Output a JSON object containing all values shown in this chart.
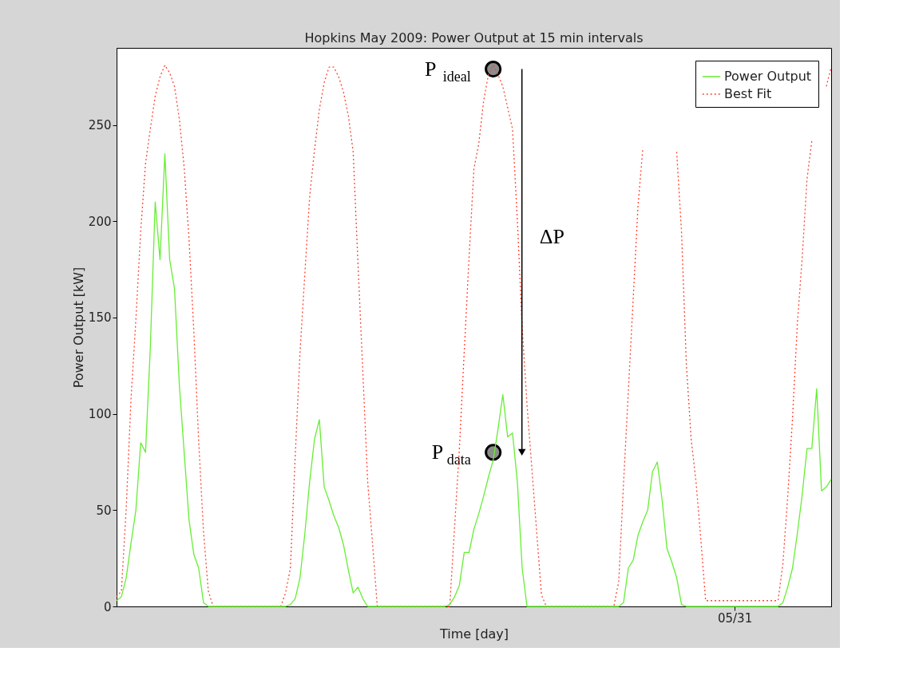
{
  "chart_data": {
    "type": "line",
    "title": "Hopkins May 2009: Power Output at 15 min intervals",
    "xlabel": "Time [day]",
    "ylabel": "Power Output [kW]",
    "categories": [
      null,
      null,
      null,
      null,
      null,
      null,
      null,
      null,
      null,
      null,
      null,
      null,
      null,
      null,
      null,
      null,
      null,
      null,
      null,
      null,
      null,
      null,
      null,
      null,
      null,
      null,
      null,
      null,
      null,
      null,
      null,
      null,
      null,
      null,
      null,
      null,
      null,
      null,
      null,
      null,
      null,
      null,
      null,
      null,
      null,
      null,
      null,
      null,
      null,
      null,
      null,
      null,
      null,
      null,
      null,
      null,
      null,
      null,
      null,
      null,
      null,
      null,
      null,
      null,
      null,
      null,
      null,
      null,
      null,
      null,
      null,
      null,
      null,
      null,
      null,
      null,
      null,
      null,
      null,
      null,
      null,
      null,
      null,
      null,
      null,
      null,
      null,
      null,
      null,
      null,
      null,
      null,
      null,
      null,
      null,
      null,
      null,
      null,
      null,
      null,
      null,
      null,
      null,
      null,
      null,
      null,
      null,
      null,
      null,
      null,
      null,
      null,
      null,
      null,
      null,
      null,
      null,
      null,
      null,
      null,
      null,
      null,
      null,
      null,
      null,
      null,
      null,
      null,
      "05/31",
      null,
      null,
      null,
      null,
      null,
      null,
      null,
      null,
      null,
      null,
      null,
      null,
      null,
      null,
      null,
      null,
      null,
      null,
      null,
      null
    ],
    "ylim": [
      0,
      290
    ],
    "yticks": [
      0,
      50,
      100,
      150,
      200,
      250
    ],
    "grid": false,
    "legend": "top right",
    "series": [
      {
        "name": "Power Output",
        "line_style": "solid",
        "color": "#66ee33",
        "values": [
          3,
          5,
          15,
          33,
          50,
          85,
          80,
          135,
          210,
          180,
          235,
          180,
          165,
          115,
          80,
          45,
          27,
          20,
          2,
          0,
          0,
          0,
          0,
          0,
          0,
          0,
          0,
          0,
          0,
          0,
          0,
          0,
          0,
          0,
          0,
          0,
          1,
          4,
          15,
          38,
          65,
          87,
          97,
          62,
          55,
          47,
          41,
          32,
          19,
          7,
          10,
          4,
          0,
          0,
          0,
          0,
          0,
          0,
          0,
          0,
          0,
          0,
          0,
          0,
          0,
          0,
          0,
          0,
          0,
          1,
          5,
          11,
          28,
          28,
          40,
          48,
          57,
          67,
          76,
          92,
          110,
          88,
          90,
          65,
          20,
          0,
          0,
          0,
          0,
          0,
          0,
          0,
          0,
          0,
          0,
          0,
          0,
          0,
          0,
          0,
          0,
          0,
          0,
          0,
          0,
          2,
          20,
          24,
          37,
          44,
          50,
          70,
          75,
          55,
          30,
          23,
          15,
          1,
          0,
          0,
          0,
          0,
          0,
          0,
          0,
          0,
          0,
          0,
          0,
          0,
          0,
          0,
          0,
          0,
          0,
          0,
          0,
          0,
          2,
          10,
          20,
          38,
          58,
          82,
          82,
          113,
          60,
          62,
          66
        ]
      },
      {
        "name": "Best Fit",
        "line_style": "dotted",
        "color": "#ff4433",
        "values": [
          5,
          8,
          51,
          108,
          149,
          195,
          230,
          248,
          265,
          275,
          281,
          277,
          270,
          253,
          228,
          191,
          143,
          86,
          39,
          8,
          0,
          0,
          0,
          0,
          0,
          0,
          0,
          0,
          0,
          0,
          0,
          0,
          0,
          0,
          0,
          7,
          20,
          78,
          132,
          173,
          213,
          237,
          258,
          272,
          280,
          280,
          275,
          267,
          255,
          236,
          178,
          122,
          65,
          33,
          0,
          0,
          0,
          0,
          0,
          0,
          0,
          0,
          0,
          0,
          0,
          0,
          0,
          0,
          0,
          0,
          41,
          82,
          132,
          181,
          227,
          240,
          262,
          276,
          281,
          276,
          270,
          259,
          248,
          201,
          145,
          105,
          72,
          39,
          6,
          0,
          0,
          0,
          0,
          0,
          0,
          0,
          0,
          0,
          0,
          0,
          0,
          0,
          0,
          0,
          13,
          64,
          112,
          160,
          208,
          238,
          null,
          null,
          null,
          null,
          null,
          null,
          236,
          195,
          126,
          87,
          65,
          35,
          3,
          3,
          3,
          3,
          3,
          3,
          3,
          3,
          3,
          3,
          3,
          3,
          3,
          3,
          3,
          3,
          22,
          57,
          98,
          147,
          181,
          222,
          242,
          null,
          null,
          270,
          280
        ]
      },
      {
        "name": "P$_{ideal}$",
        "type": "scatter",
        "marker": "circle",
        "color": "#8c8c8c",
        "values": [
          null,
          null,
          null,
          null,
          null,
          null,
          null,
          null,
          null,
          null,
          null,
          null,
          null,
          null,
          null,
          null,
          null,
          null,
          null,
          null,
          null,
          null,
          null,
          null,
          null,
          null,
          null,
          null,
          null,
          null,
          null,
          null,
          null,
          null,
          null,
          null,
          null,
          null,
          null,
          null,
          null,
          null,
          null,
          null,
          null,
          null,
          null,
          null,
          null,
          null,
          null,
          null,
          null,
          null,
          null,
          null,
          null,
          null,
          null,
          null,
          null,
          null,
          null,
          null,
          null,
          null,
          null,
          null,
          null,
          null,
          null,
          null,
          null,
          null,
          null,
          null,
          null,
          null,
          279,
          null,
          null,
          null,
          null,
          null,
          null,
          null,
          null,
          null,
          null,
          null,
          null,
          null,
          null,
          null,
          null,
          null,
          null,
          null,
          null,
          null,
          null,
          null,
          null,
          null,
          null,
          null,
          null,
          null,
          null,
          null,
          null,
          null,
          null,
          null,
          null,
          null,
          null,
          null,
          null,
          null,
          null,
          null,
          null,
          null,
          null,
          null,
          null,
          null,
          null,
          null,
          null,
          null,
          null,
          null,
          null,
          null,
          null,
          null,
          null,
          null,
          null,
          null,
          null,
          null,
          null,
          null,
          null,
          null,
          null
        ]
      },
      {
        "name": "P$_{data}$",
        "type": "scatter",
        "marker": "circle",
        "color": "#8c8c8c",
        "values": [
          null,
          null,
          null,
          null,
          null,
          null,
          null,
          null,
          null,
          null,
          null,
          null,
          null,
          null,
          null,
          null,
          null,
          null,
          null,
          null,
          null,
          null,
          null,
          null,
          null,
          null,
          null,
          null,
          null,
          null,
          null,
          null,
          null,
          null,
          null,
          null,
          null,
          null,
          null,
          null,
          null,
          null,
          null,
          null,
          null,
          null,
          null,
          null,
          null,
          null,
          null,
          null,
          null,
          null,
          null,
          null,
          null,
          null,
          null,
          null,
          null,
          null,
          null,
          null,
          null,
          null,
          null,
          null,
          null,
          null,
          null,
          null,
          null,
          null,
          null,
          null,
          null,
          null,
          80,
          null,
          null,
          null,
          null,
          null,
          null,
          null,
          null,
          null,
          null,
          null,
          null,
          null,
          null,
          null,
          null,
          null,
          null,
          null,
          null,
          null,
          null,
          null,
          null,
          null,
          null,
          null,
          null,
          null,
          null,
          null,
          null,
          null,
          null,
          null,
          null,
          null,
          null,
          null,
          null,
          null,
          null,
          null,
          null,
          null,
          null,
          null,
          null,
          null,
          null,
          null,
          null,
          null,
          null,
          null,
          null,
          null,
          null,
          null,
          null,
          null,
          null,
          null,
          null,
          null,
          null,
          null,
          null,
          null,
          null
        ]
      }
    ],
    "annotations": [
      "ΔP"
    ]
  }
}
